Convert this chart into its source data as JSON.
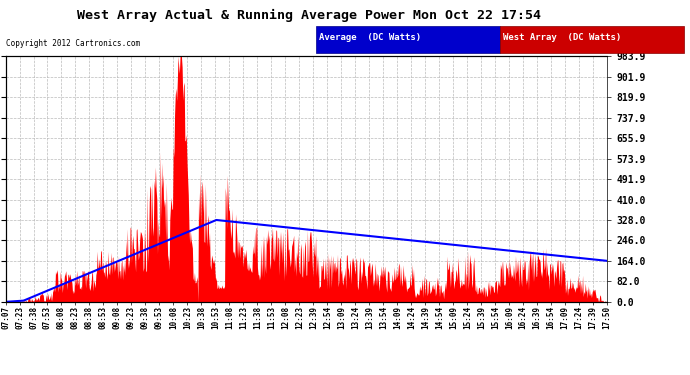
{
  "title": "West Array Actual & Running Average Power Mon Oct 22 17:54",
  "copyright": "Copyright 2012 Cartronics.com",
  "legend_labels": [
    "Average  (DC Watts)",
    "West Array  (DC Watts)"
  ],
  "y_ticks": [
    0.0,
    82.0,
    164.0,
    246.0,
    328.0,
    410.0,
    491.9,
    573.9,
    655.9,
    737.9,
    819.9,
    901.9,
    983.9
  ],
  "y_max": 983.9,
  "y_min": 0.0,
  "background_color": "#ffffff",
  "plot_bg": "#ffffff",
  "grid_color": "#bbbbbb",
  "fill_color": "#ff0000",
  "avg_line_color": "#0000ff",
  "x_labels": [
    "07:07",
    "07:23",
    "07:38",
    "07:53",
    "08:08",
    "08:23",
    "08:38",
    "08:53",
    "09:08",
    "09:23",
    "09:38",
    "09:53",
    "10:08",
    "10:23",
    "10:38",
    "10:53",
    "11:08",
    "11:23",
    "11:38",
    "11:53",
    "12:08",
    "12:23",
    "12:39",
    "12:54",
    "13:09",
    "13:24",
    "13:39",
    "13:54",
    "14:09",
    "14:24",
    "14:39",
    "14:54",
    "15:09",
    "15:24",
    "15:39",
    "15:54",
    "16:09",
    "16:24",
    "16:39",
    "16:54",
    "17:09",
    "17:24",
    "17:39",
    "17:50"
  ]
}
